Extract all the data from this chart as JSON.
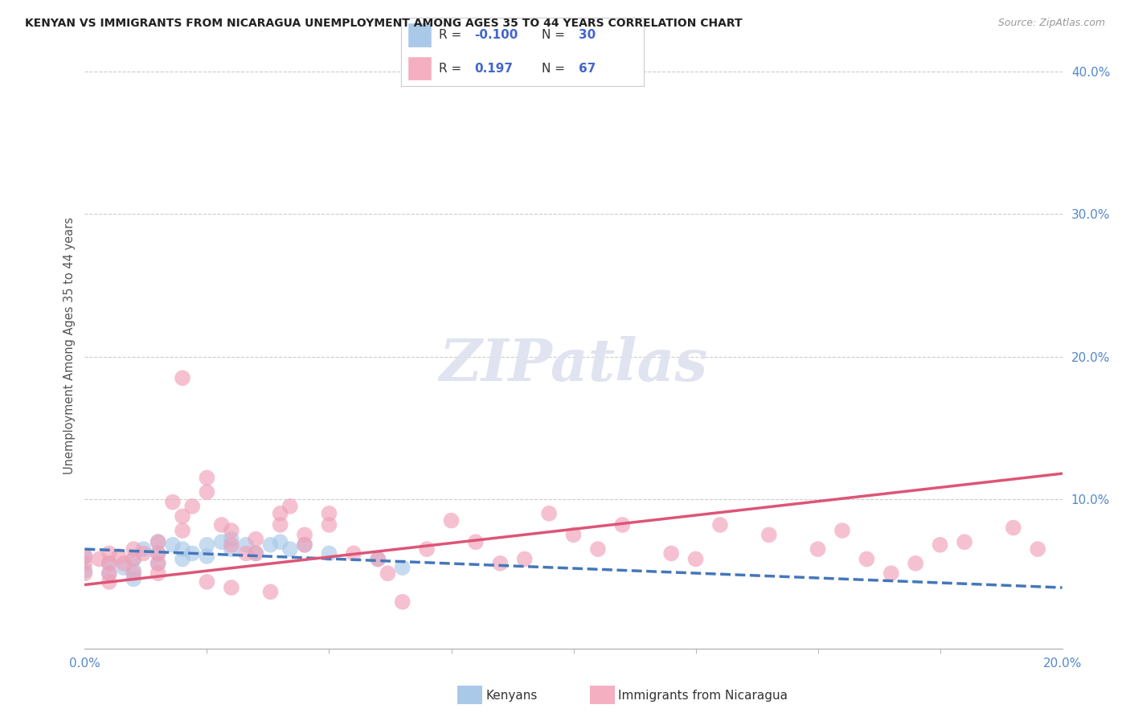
{
  "title": "KENYAN VS IMMIGRANTS FROM NICARAGUA UNEMPLOYMENT AMONG AGES 35 TO 44 YEARS CORRELATION CHART",
  "source": "Source: ZipAtlas.com",
  "ylabel": "Unemployment Among Ages 35 to 44 years",
  "kenyan_R": "-0.100",
  "kenyan_N": "30",
  "nicaragua_R": "0.197",
  "nicaragua_N": "67",
  "kenyan_color": "#a8c8e8",
  "nicaragua_color": "#f0a0b8",
  "kenyan_line_color": "#4477bb",
  "nicaragua_line_color": "#dd5577",
  "background_color": "#ffffff",
  "grid_color": "#cccccc",
  "xlim": [
    0.0,
    0.2
  ],
  "ylim": [
    -0.005,
    0.42
  ],
  "yticks": [
    0.1,
    0.2,
    0.3,
    0.4
  ],
  "xticks": [
    0.0,
    0.025,
    0.05,
    0.075,
    0.1,
    0.125,
    0.15,
    0.175,
    0.2
  ],
  "legend_kenyan_color": "#aac8e8",
  "legend_nicaragua_color": "#f4afc0",
  "kenyan_scatter_x": [
    0.0,
    0.0,
    0.005,
    0.005,
    0.008,
    0.01,
    0.01,
    0.01,
    0.012,
    0.015,
    0.015,
    0.015,
    0.018,
    0.02,
    0.02,
    0.022,
    0.025,
    0.025,
    0.028,
    0.03,
    0.03,
    0.033,
    0.035,
    0.038,
    0.04,
    0.042,
    0.045,
    0.05,
    0.06,
    0.065
  ],
  "kenyan_scatter_y": [
    0.06,
    0.05,
    0.055,
    0.048,
    0.052,
    0.058,
    0.05,
    0.044,
    0.065,
    0.07,
    0.062,
    0.055,
    0.068,
    0.065,
    0.058,
    0.062,
    0.068,
    0.06,
    0.07,
    0.072,
    0.065,
    0.068,
    0.062,
    0.068,
    0.07,
    0.065,
    0.068,
    0.062,
    0.058,
    0.052
  ],
  "nicaragua_scatter_x": [
    0.0,
    0.0,
    0.0,
    0.003,
    0.005,
    0.005,
    0.005,
    0.005,
    0.007,
    0.008,
    0.01,
    0.01,
    0.01,
    0.012,
    0.015,
    0.015,
    0.015,
    0.015,
    0.018,
    0.02,
    0.02,
    0.02,
    0.022,
    0.025,
    0.025,
    0.025,
    0.028,
    0.03,
    0.03,
    0.03,
    0.033,
    0.035,
    0.035,
    0.038,
    0.04,
    0.04,
    0.042,
    0.045,
    0.045,
    0.05,
    0.05,
    0.055,
    0.06,
    0.062,
    0.065,
    0.07,
    0.075,
    0.08,
    0.085,
    0.09,
    0.095,
    0.1,
    0.105,
    0.11,
    0.12,
    0.125,
    0.13,
    0.14,
    0.15,
    0.155,
    0.16,
    0.165,
    0.17,
    0.175,
    0.18,
    0.19,
    0.195
  ],
  "nicaragua_scatter_y": [
    0.06,
    0.055,
    0.048,
    0.058,
    0.062,
    0.055,
    0.048,
    0.042,
    0.06,
    0.055,
    0.065,
    0.058,
    0.048,
    0.062,
    0.07,
    0.062,
    0.055,
    0.048,
    0.098,
    0.088,
    0.078,
    0.185,
    0.095,
    0.115,
    0.105,
    0.042,
    0.082,
    0.078,
    0.068,
    0.038,
    0.062,
    0.072,
    0.062,
    0.035,
    0.09,
    0.082,
    0.095,
    0.068,
    0.075,
    0.09,
    0.082,
    0.062,
    0.058,
    0.048,
    0.028,
    0.065,
    0.085,
    0.07,
    0.055,
    0.058,
    0.09,
    0.075,
    0.065,
    0.082,
    0.062,
    0.058,
    0.082,
    0.075,
    0.065,
    0.078,
    0.058,
    0.048,
    0.055,
    0.068,
    0.07,
    0.08,
    0.065
  ],
  "kenyan_trend_x": [
    0.0,
    0.2
  ],
  "kenyan_trend_y": [
    0.065,
    0.038
  ],
  "nicaragua_trend_x": [
    0.0,
    0.2
  ],
  "nicaragua_trend_y": [
    0.04,
    0.118
  ],
  "watermark_text": "ZIPatlas",
  "watermark_color": "#e0e4f0"
}
